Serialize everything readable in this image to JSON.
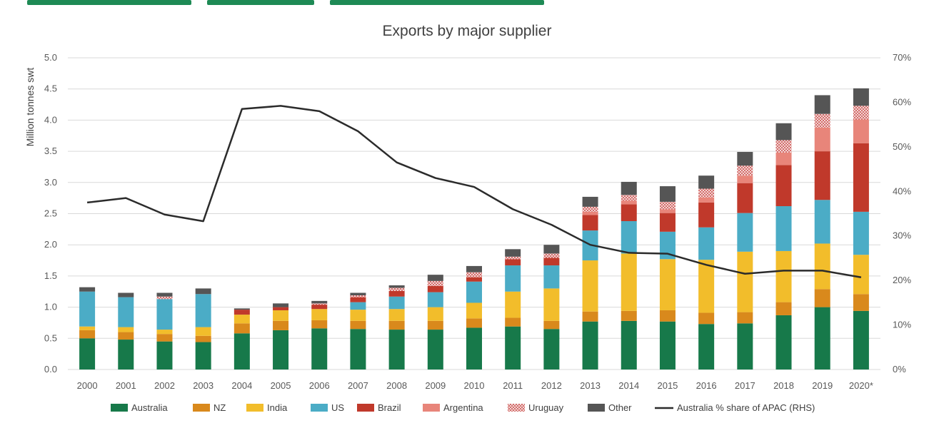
{
  "header_partial_title": "",
  "chart_data": {
    "type": "bar",
    "stacked": true,
    "title": "Exports by major supplier",
    "ylabel": "Million tonnes swt",
    "ylim": [
      0,
      5
    ],
    "y_ticks": [
      "0.0",
      "0.5",
      "1.0",
      "1.5",
      "2.0",
      "2.5",
      "3.0",
      "3.5",
      "4.0",
      "4.5",
      "5.0"
    ],
    "y2_ticks": [
      "0%",
      "10%",
      "20%",
      "30%",
      "40%",
      "50%",
      "60%",
      "70%"
    ],
    "y2lim": [
      0,
      70
    ],
    "grid": true,
    "legend_position": "bottom",
    "categories": [
      "2000",
      "2001",
      "2002",
      "2003",
      "2004",
      "2005",
      "2006",
      "2007",
      "2008",
      "2009",
      "2010",
      "2011",
      "2012",
      "2013",
      "2014",
      "2015",
      "2016",
      "2017",
      "2018",
      "2019",
      "2020*"
    ],
    "series": [
      {
        "name": "Australia",
        "color": "#17794a",
        "pattern": "solid",
        "values": [
          0.5,
          0.48,
          0.45,
          0.44,
          0.58,
          0.63,
          0.66,
          0.65,
          0.64,
          0.64,
          0.67,
          0.69,
          0.65,
          0.77,
          0.78,
          0.77,
          0.73,
          0.74,
          0.87,
          1.0,
          0.94
        ]
      },
      {
        "name": "NZ",
        "color": "#d9891c",
        "pattern": "solid",
        "values": [
          0.13,
          0.12,
          0.12,
          0.1,
          0.16,
          0.15,
          0.13,
          0.13,
          0.14,
          0.14,
          0.15,
          0.14,
          0.13,
          0.16,
          0.16,
          0.18,
          0.18,
          0.18,
          0.21,
          0.29,
          0.27
        ]
      },
      {
        "name": "India",
        "color": "#f2bd2b",
        "pattern": "solid",
        "values": [
          0.06,
          0.08,
          0.07,
          0.14,
          0.14,
          0.17,
          0.18,
          0.18,
          0.19,
          0.22,
          0.25,
          0.42,
          0.52,
          0.82,
          0.92,
          0.82,
          0.85,
          0.97,
          0.82,
          0.73,
          0.63
        ]
      },
      {
        "name": "US",
        "color": "#4bacc6",
        "pattern": "solid",
        "values": [
          0.56,
          0.48,
          0.49,
          0.53,
          0.0,
          0.0,
          0.0,
          0.12,
          0.2,
          0.24,
          0.34,
          0.42,
          0.37,
          0.48,
          0.52,
          0.44,
          0.52,
          0.62,
          0.72,
          0.7,
          0.69
        ]
      },
      {
        "name": "Brazil",
        "color": "#c0392b",
        "pattern": "solid",
        "values": [
          0.0,
          0.0,
          0.0,
          0.0,
          0.08,
          0.05,
          0.07,
          0.08,
          0.09,
          0.1,
          0.07,
          0.1,
          0.12,
          0.25,
          0.27,
          0.3,
          0.4,
          0.48,
          0.66,
          0.78,
          1.1
        ]
      },
      {
        "name": "Argentina",
        "color": "#e8857a",
        "pattern": "solid",
        "values": [
          0.0,
          0.0,
          0.0,
          0.0,
          0.0,
          0.0,
          0.0,
          0.0,
          0.0,
          0.0,
          0.0,
          0.0,
          0.0,
          0.05,
          0.06,
          0.06,
          0.08,
          0.12,
          0.2,
          0.38,
          0.38
        ]
      },
      {
        "name": "Uruguay",
        "color": "#c94c4c",
        "pattern": "hatched",
        "values": [
          0.0,
          0.0,
          0.04,
          0.0,
          0.0,
          0.0,
          0.02,
          0.03,
          0.05,
          0.08,
          0.08,
          0.04,
          0.07,
          0.08,
          0.09,
          0.12,
          0.14,
          0.16,
          0.2,
          0.22,
          0.22
        ]
      },
      {
        "name": "Other",
        "color": "#555555",
        "pattern": "solid",
        "values": [
          0.07,
          0.07,
          0.06,
          0.09,
          0.02,
          0.06,
          0.04,
          0.04,
          0.04,
          0.1,
          0.1,
          0.12,
          0.14,
          0.16,
          0.21,
          0.25,
          0.21,
          0.22,
          0.27,
          0.3,
          0.28
        ]
      }
    ],
    "line": {
      "name": "Australia % share of APAC (RHS)",
      "color": "#2b2b2b",
      "axis": "right",
      "values": [
        37.5,
        38.5,
        34.8,
        33.3,
        58.5,
        59.2,
        58.0,
        53.5,
        46.5,
        43.0,
        41.0,
        36.0,
        32.5,
        28.0,
        26.2,
        26.0,
        23.5,
        21.5,
        22.2,
        22.2,
        20.7
      ]
    }
  }
}
